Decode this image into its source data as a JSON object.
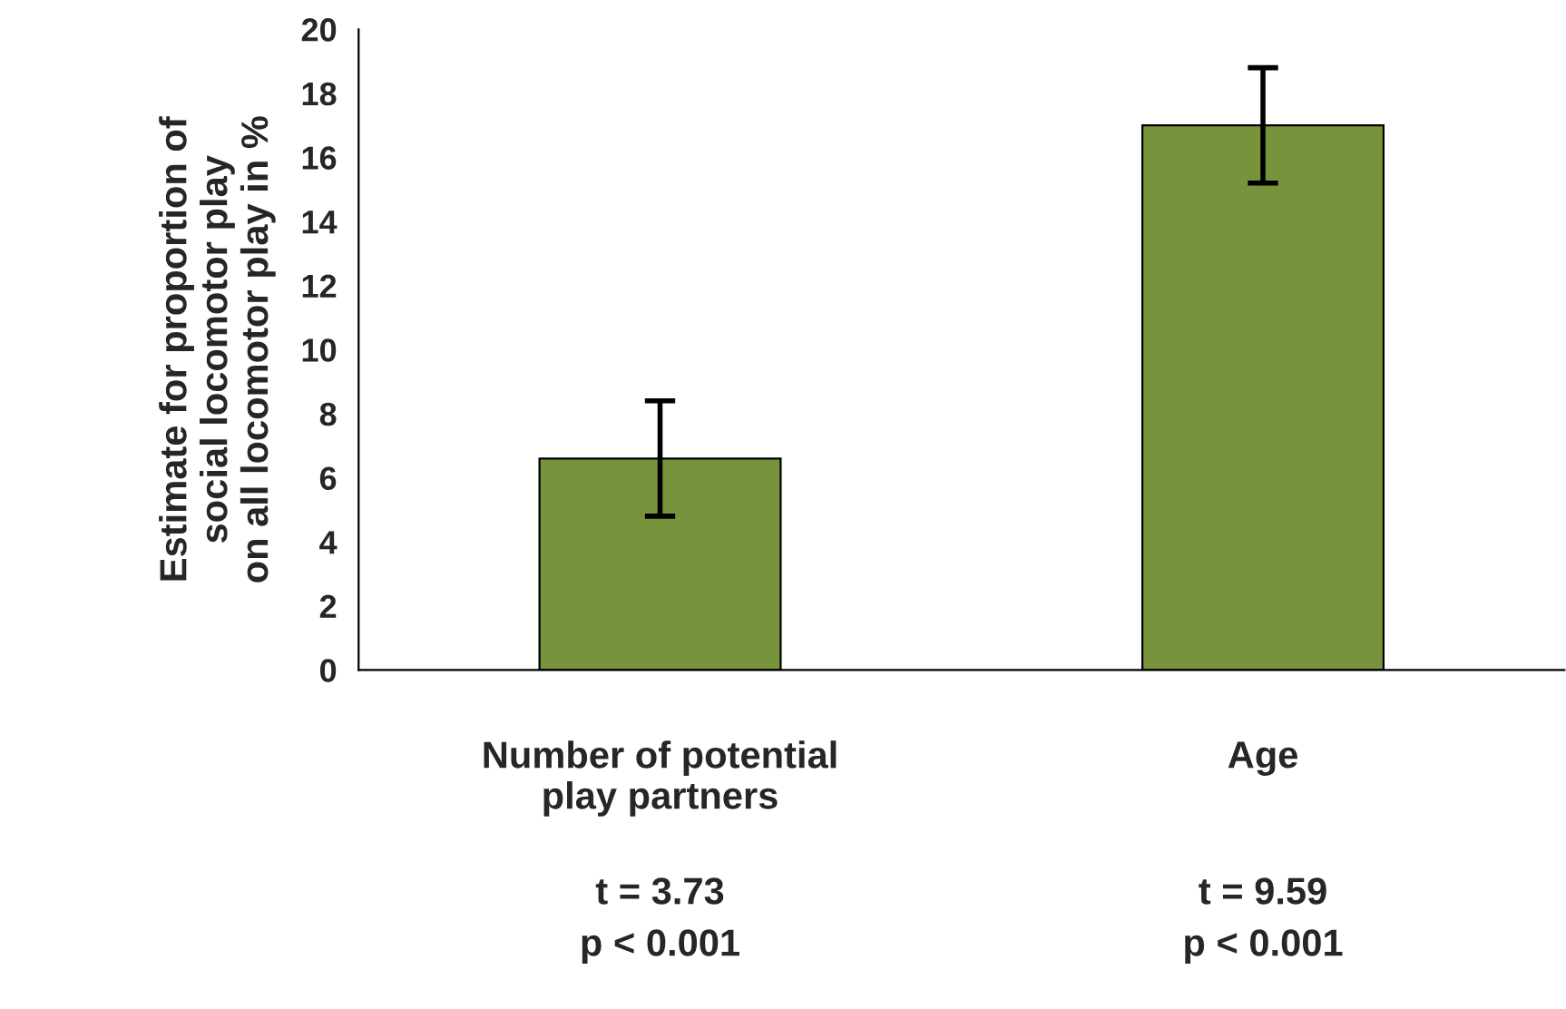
{
  "chart_data": {
    "type": "bar",
    "ylabel": "Estimate for proportion of\nsocial locomotor play\non all locomotor play in %",
    "categories": [
      "Number of potential\nplay partners",
      "Age"
    ],
    "values": [
      6.6,
      17.0
    ],
    "errors": [
      1.8,
      1.8
    ],
    "color": "#77933c",
    "ylim": [
      0,
      20
    ],
    "yticks": [
      0,
      2,
      4,
      6,
      8,
      10,
      12,
      14,
      16,
      18,
      20
    ],
    "annotations": [
      "t = 3.73\np < 0.001",
      "t = 9.59\np < 0.001"
    ]
  }
}
